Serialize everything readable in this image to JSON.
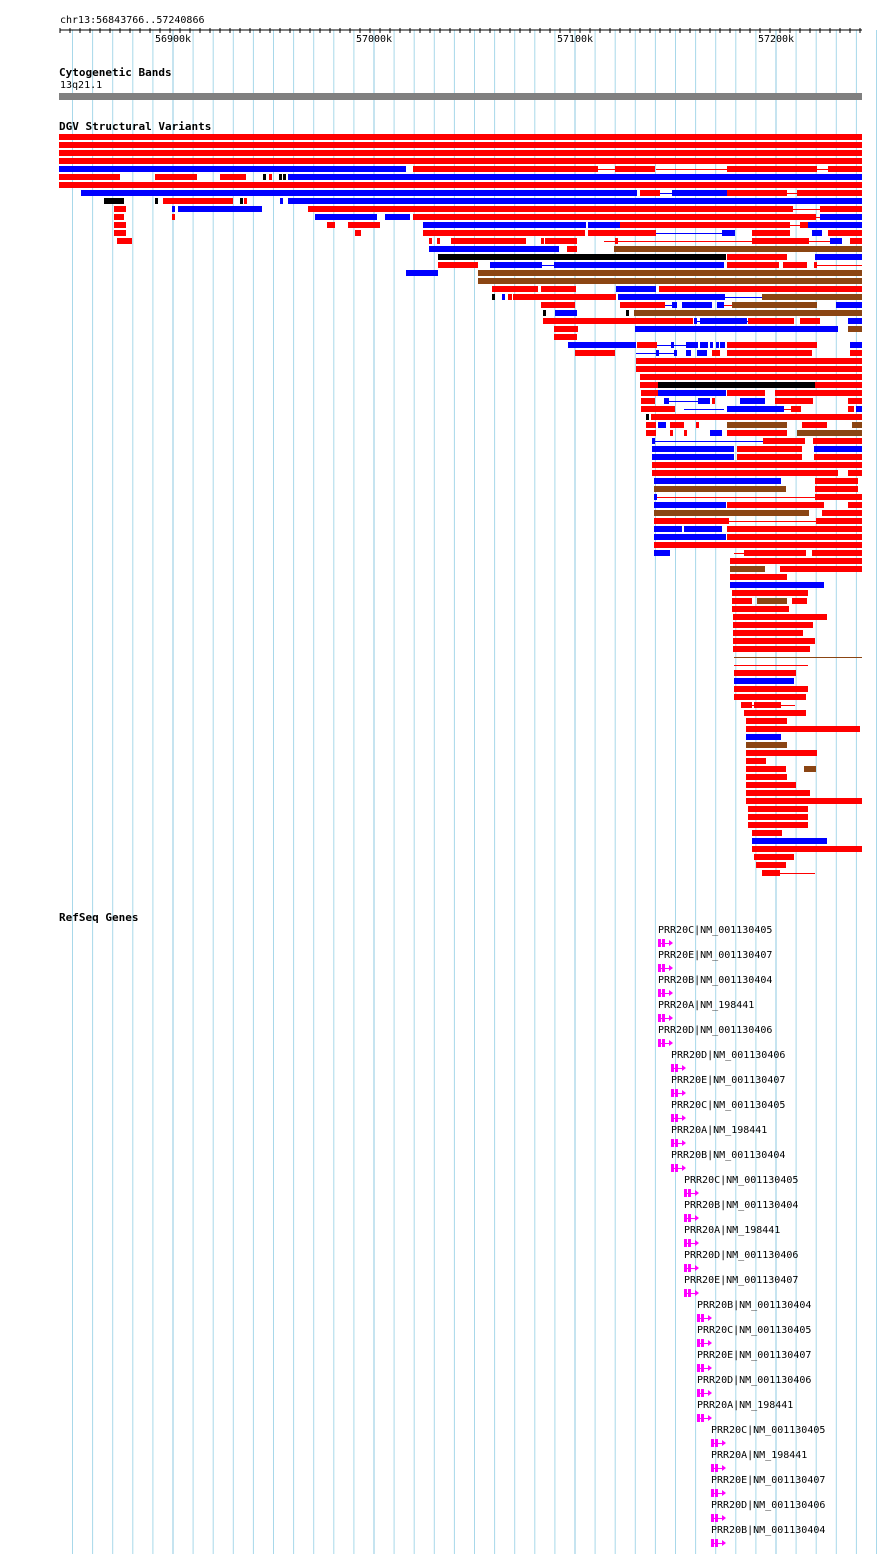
{
  "browser": {
    "location": "chr13:56843766..57240866",
    "ruler_ticks": [
      "56900k",
      "57000k",
      "57100k",
      "57200k"
    ]
  },
  "tracks": {
    "cytoband": {
      "title": "Cytogenetic Bands",
      "band": "13q21.1"
    },
    "dgv": {
      "title": "DGV Structural Variants"
    },
    "refseq": {
      "title": "RefSeq Genes"
    }
  },
  "colors": {
    "loss": "#ff0000",
    "gain": "#0000ff",
    "inversion": "#8b4513",
    "complex": "#000000",
    "grid": "#a8d8ea",
    "gene": "#ff00ff",
    "cytoband": "#808080"
  },
  "genes": [
    "PRR20C|NM_001130405",
    "PRR20E|NM_001130407",
    "PRR20B|NM_001130404",
    "PRR20A|NM_198441",
    "PRR20D|NM_001130406",
    "PRR20D|NM_001130406",
    "PRR20E|NM_001130407",
    "PRR20C|NM_001130405",
    "PRR20A|NM_198441",
    "PRR20B|NM_001130404",
    "PRR20C|NM_001130405",
    "PRR20B|NM_001130404",
    "PRR20A|NM_198441",
    "PRR20D|NM_001130406",
    "PRR20E|NM_001130407",
    "PRR20B|NM_001130404",
    "PRR20C|NM_001130405",
    "PRR20E|NM_001130407",
    "PRR20D|NM_001130406",
    "PRR20A|NM_198441",
    "PRR20C|NM_001130405",
    "PRR20A|NM_198441",
    "PRR20E|NM_001130407",
    "PRR20D|NM_001130406",
    "PRR20B|NM_001130404"
  ]
}
